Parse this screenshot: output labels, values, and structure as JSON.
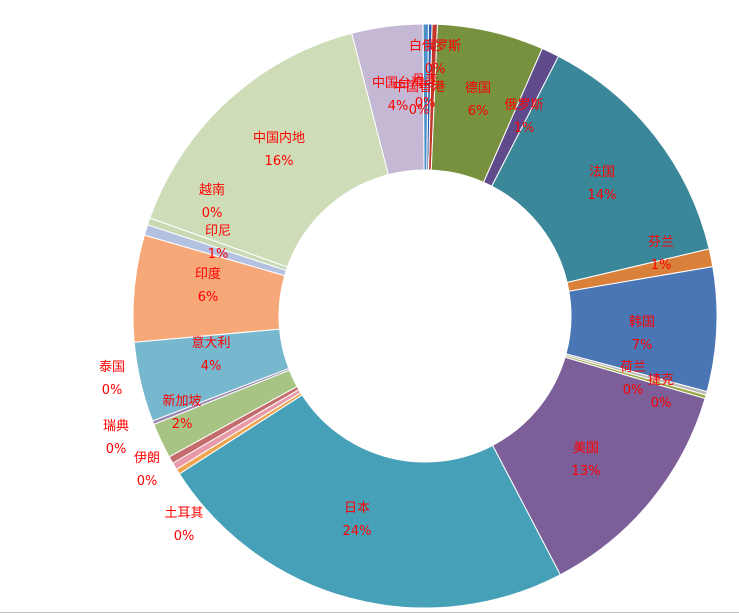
{
  "chart_data": {
    "type": "pie",
    "variant": "donut",
    "title": "",
    "legend": "none",
    "label_color": "#ff0000",
    "slices": [
      {
        "label": "白俄罗斯",
        "pct_label": "0%",
        "value": 0.2,
        "color": "#2e5da8"
      },
      {
        "label": "丹麦",
        "pct_label": "0%",
        "value": 0.3,
        "color": "#c0392b"
      },
      {
        "label": "德国",
        "pct_label": "6%",
        "value": 6.0,
        "color": "#77913f"
      },
      {
        "label": "俄罗斯",
        "pct_label": "1%",
        "value": 1.0,
        "color": "#5f4b8b"
      },
      {
        "label": "法国",
        "pct_label": "14%",
        "value": 14.0,
        "color": "#3a8799"
      },
      {
        "label": "芬兰",
        "pct_label": "1%",
        "value": 1.0,
        "color": "#d9813a"
      },
      {
        "label": "韩国",
        "pct_label": "7%",
        "value": 7.0,
        "color": "#4a76b5"
      },
      {
        "label": "荷兰",
        "pct_label": "0%",
        "value": 0.2,
        "color": "#b8b8b8"
      },
      {
        "label": "捷克",
        "pct_label": "0%",
        "value": 0.2,
        "color": "#9aaa45"
      },
      {
        "label": "美国",
        "pct_label": "13%",
        "value": 13.0,
        "color": "#7c5e98"
      },
      {
        "label": "日本",
        "pct_label": "24%",
        "value": 24.0,
        "color": "#45a0b8"
      },
      {
        "label": "土耳其",
        "pct_label": "0%",
        "value": 0.3,
        "color": "#f0a450"
      },
      {
        "label": "伊朗",
        "pct_label": "0%",
        "value": 0.4,
        "color": "#e89aa8"
      },
      {
        "label": "瑞典",
        "pct_label": "0%",
        "value": 0.4,
        "color": "#c46b6b"
      },
      {
        "label": "新加坡",
        "pct_label": "2%",
        "value": 2.0,
        "color": "#a8c484"
      },
      {
        "label": "泰国",
        "pct_label": "0%",
        "value": 0.2,
        "color": "#9a86b0"
      },
      {
        "label": "意大利",
        "pct_label": "4%",
        "value": 4.5,
        "color": "#78b8cf"
      },
      {
        "label": "印度",
        "pct_label": "6%",
        "value": 6.0,
        "color": "#f7a878"
      },
      {
        "label": "印尼",
        "pct_label": "1%",
        "value": 0.6,
        "color": "#b4c2e2"
      },
      {
        "label": "越南",
        "pct_label": "0%",
        "value": 0.4,
        "color": "#c8d9b4"
      },
      {
        "label": "中国内地",
        "pct_label": "16%",
        "value": 15.8,
        "color": "#cfdcb8"
      },
      {
        "label": "中国台湾",
        "pct_label": "4%",
        "value": 4.0,
        "color": "#c4b8d4"
      },
      {
        "label": "中国香港",
        "pct_label": "0%",
        "value": 0.3,
        "color": "#4a90c8"
      }
    ]
  }
}
